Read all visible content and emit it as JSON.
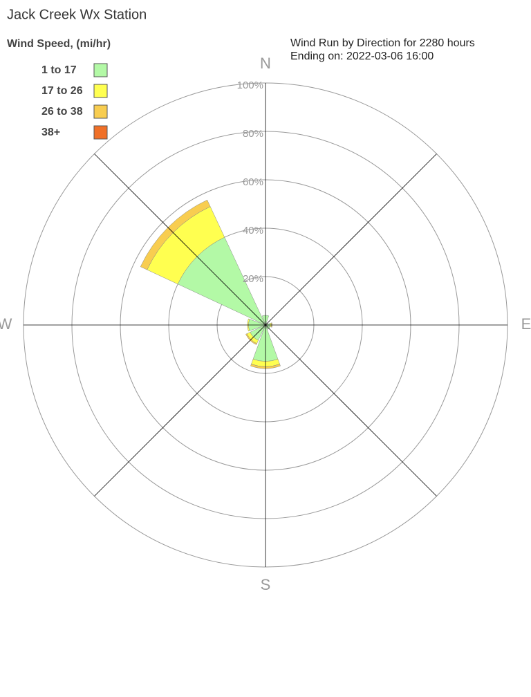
{
  "chart_data": {
    "type": "windrose",
    "title": "Jack Creek Wx Station",
    "legend_title": "Wind Speed, (mi/hr)",
    "subtitle": "Wind Run by Direction for 2280 hours",
    "subtitle2": "Ending on: 2022-03-06 16:00",
    "categories": [
      "N",
      null,
      "E",
      null,
      "S",
      null,
      "W",
      null
    ],
    "rlim": [
      0,
      100
    ],
    "rticks": [
      {
        "value": 20,
        "label": "20%"
      },
      {
        "value": 40,
        "label": "40%"
      },
      {
        "value": 60,
        "label": "60%"
      },
      {
        "value": 80,
        "label": "80%"
      },
      {
        "value": 100,
        "label": "100%"
      }
    ],
    "series": [
      {
        "name": "1 to 17",
        "color": "#b3f9a6",
        "values": [
          4,
          1,
          2,
          2,
          15,
          7,
          7,
          40
        ]
      },
      {
        "name": "17 to 26",
        "color": "#ffff50",
        "values": [
          0,
          0,
          0.5,
          0,
          2.2,
          1.5,
          0.5,
          14
        ]
      },
      {
        "name": "26 to 38",
        "color": "#f8cd50",
        "values": [
          0,
          0,
          0.3,
          0,
          0.8,
          0.5,
          0,
          3
        ]
      },
      {
        "name": "38+",
        "color": "#f07028",
        "values": [
          0,
          0,
          0,
          0,
          0,
          0,
          0,
          0
        ]
      }
    ]
  }
}
